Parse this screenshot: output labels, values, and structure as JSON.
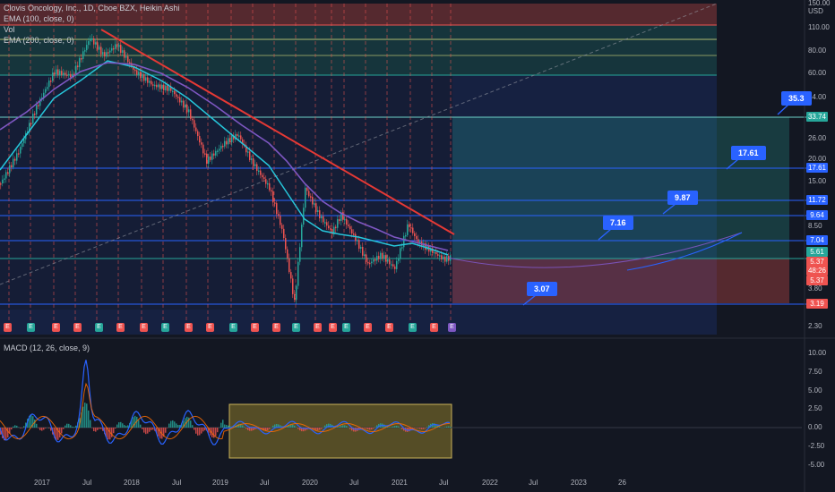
{
  "legend": {
    "symbol": "Clovis Oncology, Inc., 1D, Cboe BZX, Heikin Ashi",
    "vol": "Vol",
    "ema100": "EMA (100, close, 0)",
    "ema200": "EMA (200, close, 0)"
  },
  "currency": "USD",
  "price_axis": [
    "150.00",
    "110.00",
    "80.00",
    "60.00",
    "44.00",
    "26.00",
    "20.00",
    "15.00",
    "8.50",
    "3.80",
    "2.30"
  ],
  "price_tags": [
    {
      "label": "33.74",
      "color": "#26a69a"
    },
    {
      "label": "17.61",
      "color": "#2962ff"
    },
    {
      "label": "11.72",
      "color": "#2962ff"
    },
    {
      "label": "9.64",
      "color": "#2962ff"
    },
    {
      "label": "7.04",
      "color": "#2962ff"
    },
    {
      "label": "5.61",
      "color": "#26a69a"
    },
    {
      "label": "5.37",
      "color": "#ef5350"
    },
    {
      "label": "48:26",
      "color": "#ef5350"
    },
    {
      "label": "5.37",
      "color": "#ef5350"
    },
    {
      "label": "3.19",
      "color": "#ef5350"
    }
  ],
  "callouts": [
    "35.3",
    "17.61",
    "9.87",
    "7.16",
    "3.07"
  ],
  "macd": {
    "title": "MACD (12, 26, close, 9)",
    "axis": [
      "10.00",
      "7.50",
      "5.00",
      "2.50",
      "0.00",
      "-2.50",
      "-5.00"
    ]
  },
  "time_axis": [
    "2017",
    "Jul",
    "2018",
    "Jul",
    "2019",
    "Jul",
    "2020",
    "Jul",
    "2021",
    "Jul",
    "2022",
    "Jul",
    "2023",
    "26"
  ],
  "earnings_marker": "E",
  "colors": {
    "background": "#131722",
    "up": "#26a69a",
    "down": "#ef5350",
    "trend": "#e53935",
    "ema100": "#26c6da",
    "ema200": "#7e57c2",
    "accent": "#2962ff"
  }
}
